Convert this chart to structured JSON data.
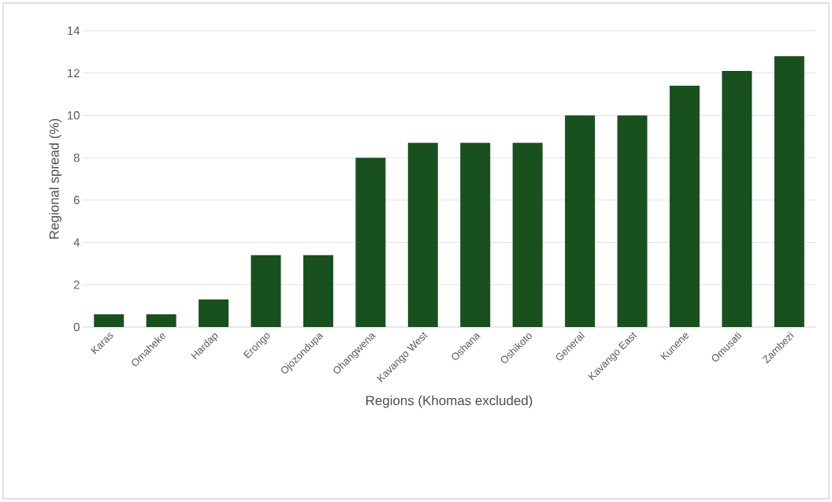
{
  "chart_data": {
    "type": "bar",
    "xlabel": "Regions (Khomas excluded)",
    "ylabel": "Regional spread (%)",
    "categories": [
      "Karas",
      "Omaheke",
      "Hardap",
      "Erongo",
      "Ojozondupa",
      "Ohangwena",
      "Kavango West",
      "Oshana",
      "Oshikoto",
      "General",
      "Kavango East",
      "Kunene",
      "Omusati",
      "Zambezi"
    ],
    "values": [
      0.6,
      0.6,
      1.3,
      3.4,
      3.4,
      8.0,
      8.7,
      8.7,
      8.7,
      10.0,
      10.0,
      11.4,
      12.1,
      12.8
    ],
    "color": "#18501e",
    "ylim": [
      0,
      14
    ],
    "yticks": [
      0,
      2,
      4,
      6,
      8,
      10,
      12,
      14
    ],
    "grid": "y"
  }
}
